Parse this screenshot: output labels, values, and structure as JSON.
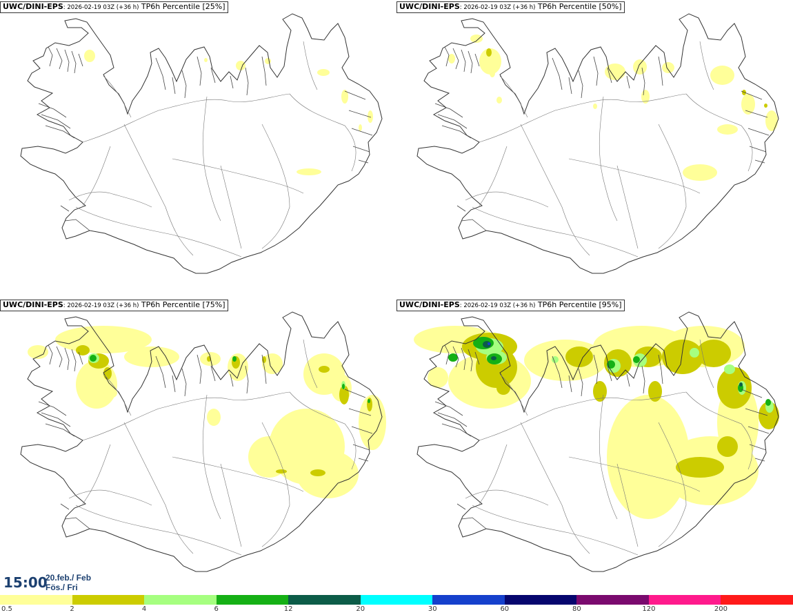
{
  "panels": [
    {
      "model": "UWC/DINI-EPS",
      "info": ": 2026-02-19 03Z (+36 h)",
      "param": "TP6h Percentile [25%]"
    },
    {
      "model": "UWC/DINI-EPS",
      "info": ": 2026-02-19 03Z (+36 h)",
      "param": "TP6h Percentile [50%]"
    },
    {
      "model": "UWC/DINI-EPS",
      "info": ": 2026-02-19 03Z (+36 h)",
      "param": "TP6h Percentile [75%]"
    },
    {
      "model": "UWC/DINI-EPS",
      "info": ": 2026-02-19 03Z (+36 h)",
      "param": "TP6h Percentile [95%]"
    }
  ],
  "valid_time": {
    "time": "15:00",
    "date": "20.feb./ Feb",
    "day": "Fös./ Fri"
  },
  "legend": {
    "colors": [
      "#ffff99",
      "#cccc00",
      "#a6ff80",
      "#15b015",
      "#0c5c48",
      "#00ffff",
      "#1540cc",
      "#06066e",
      "#7a0a6e",
      "#ff1a8c",
      "#ff1a1a"
    ],
    "ticks": [
      "0.5",
      "2",
      "4",
      "6",
      "12",
      "20",
      "30",
      "60",
      "80",
      "120",
      "200"
    ]
  }
}
